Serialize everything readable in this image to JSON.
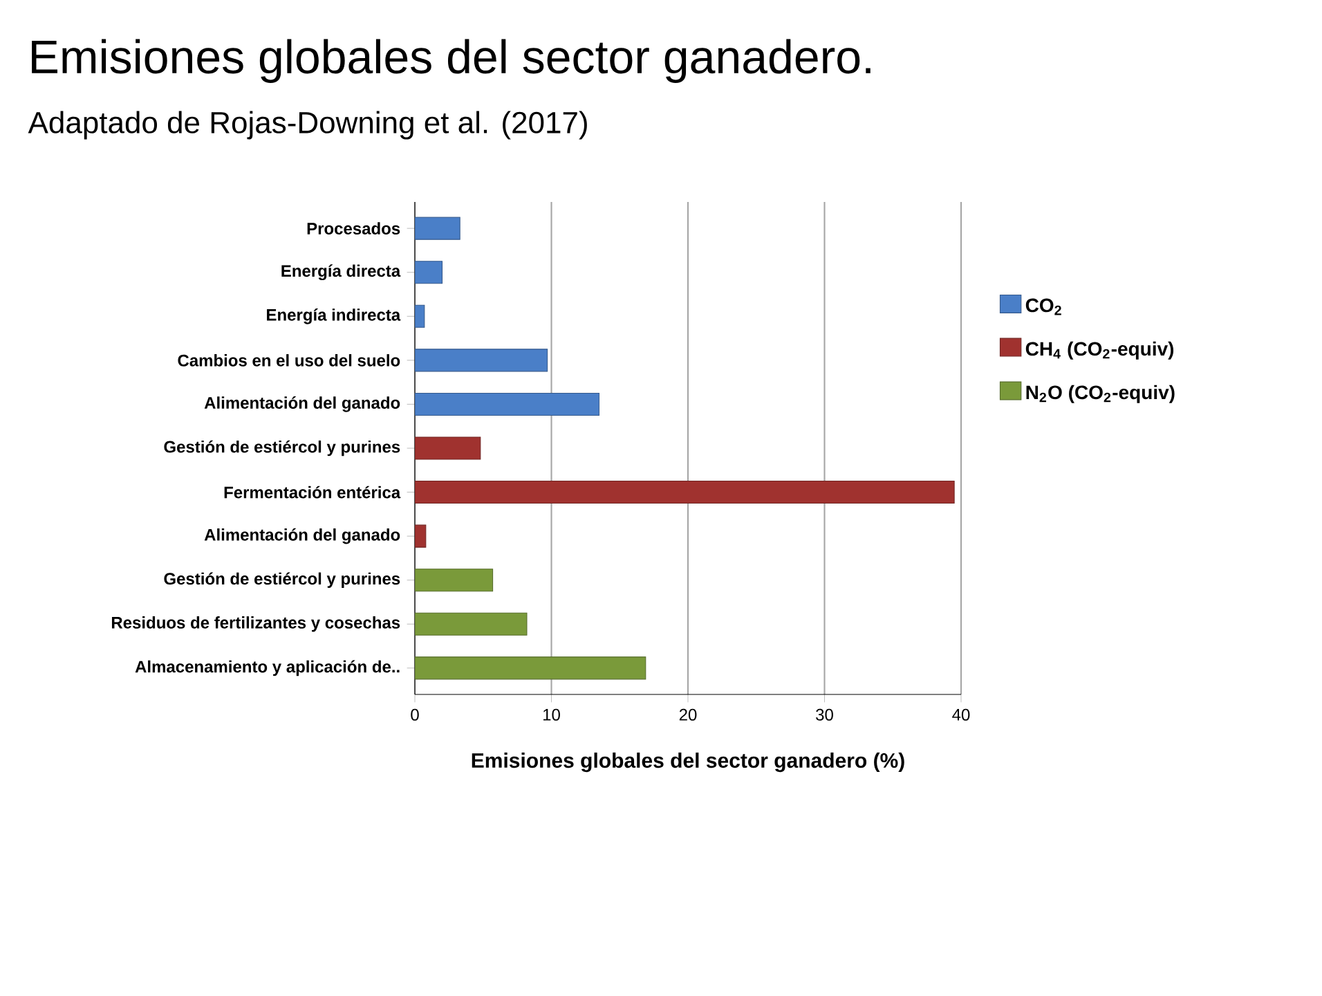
{
  "chart_data": {
    "type": "bar",
    "orientation": "horizontal",
    "title": "Emisiones globales del sector ganadero.",
    "subtitle": "Adaptado de Rojas-Downing et al. (2017)",
    "xlabel": "Emisiones globales del sector ganadero (%)",
    "categories": [
      "Procesados",
      "Energía directa",
      "Energía indirecta",
      "Cambios en el uso del suelo",
      "Alimentación del ganado",
      "Gestión de estiércol y purines",
      "Fermentación entérica",
      "Alimentación del ganado",
      "Gestión de estiércol y purines",
      "Residuos de fertilizantes y cosechas",
      "Almacenamiento y aplicación de.."
    ],
    "series": [
      {
        "name": "CO$_{2}$",
        "color": "#4a7fc8",
        "values": [
          3.3,
          2.0,
          0.7,
          9.7,
          13.5,
          null,
          null,
          null,
          null,
          null,
          null
        ]
      },
      {
        "name": "CH$_{4}$ (CO$_{2}$-equiv)",
        "color": "#a0322f",
        "values": [
          null,
          null,
          null,
          null,
          null,
          4.8,
          39.5,
          0.8,
          null,
          null,
          null
        ]
      },
      {
        "name": "N$_{2}$O (CO$_{2}$-equiv)",
        "color": "#7a9a3a",
        "values": [
          null,
          null,
          null,
          null,
          null,
          null,
          null,
          null,
          5.7,
          8.2,
          16.9
        ]
      }
    ],
    "xlim": [
      0,
      40
    ],
    "xticks": [
      0,
      10,
      20,
      30,
      40
    ],
    "grid": "x",
    "legend": "right"
  }
}
